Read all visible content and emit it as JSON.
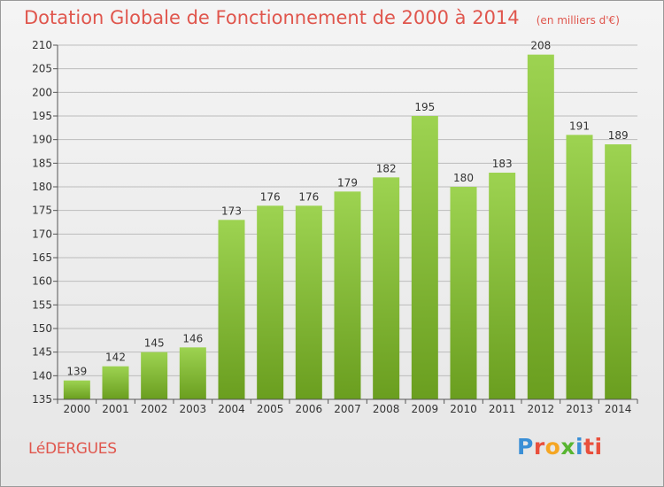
{
  "header": {
    "title": "Dotation Globale de Fonctionnement de 2000 à 2014",
    "unit": "(en milliers d'€)"
  },
  "footer": {
    "commune": "LéDERGUES",
    "brand": [
      "P",
      "r",
      "o",
      "x",
      "i",
      "ti"
    ]
  },
  "chart_data": {
    "type": "bar",
    "title": "Dotation Globale de Fonctionnement de 2000 à 2014",
    "subtitle": "(en milliers d'€)",
    "categories": [
      "2000",
      "2001",
      "2002",
      "2003",
      "2004",
      "2005",
      "2006",
      "2007",
      "2008",
      "2009",
      "2010",
      "2011",
      "2012",
      "2013",
      "2014"
    ],
    "values": [
      139,
      142,
      145,
      146,
      173,
      176,
      176,
      179,
      182,
      195,
      180,
      183,
      208,
      191,
      189
    ],
    "ylim": [
      135,
      210
    ],
    "yticks": [
      135,
      140,
      145,
      150,
      155,
      160,
      165,
      170,
      175,
      180,
      185,
      190,
      195,
      200,
      205,
      210
    ],
    "grid": true,
    "colors": {
      "bar_top": "#9dd351",
      "bar_bottom": "#6a9e1f",
      "grid": "#bcbcbc",
      "text": "#333333",
      "title": "#e0564d"
    }
  }
}
